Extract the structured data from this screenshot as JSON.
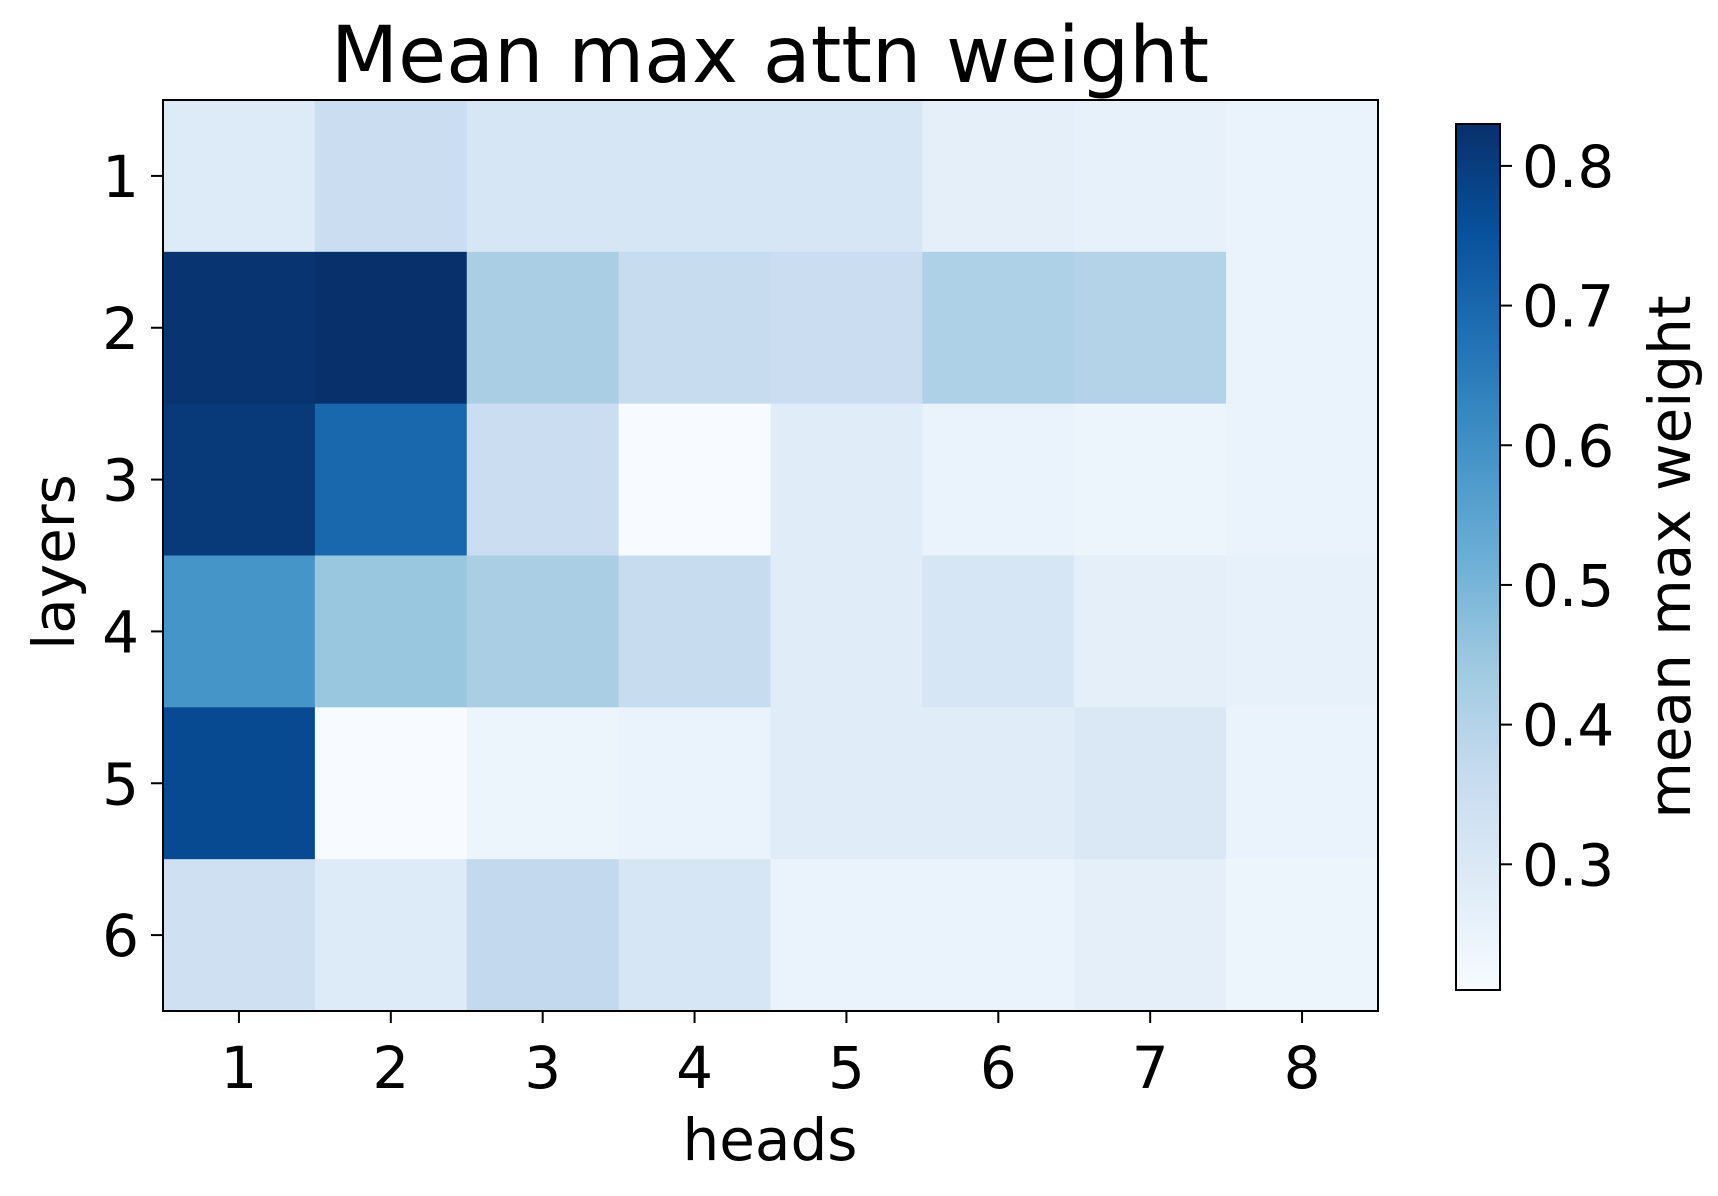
{
  "chart_data": {
    "type": "heatmap",
    "title": "Mean max attn weight",
    "xlabel": "heads",
    "ylabel": "layers",
    "x_categories": [
      "1",
      "2",
      "3",
      "4",
      "5",
      "6",
      "7",
      "8"
    ],
    "y_categories": [
      "1",
      "2",
      "3",
      "4",
      "5",
      "6"
    ],
    "values": [
      [
        0.29,
        0.35,
        0.31,
        0.31,
        0.31,
        0.27,
        0.26,
        0.25
      ],
      [
        0.82,
        0.83,
        0.42,
        0.36,
        0.35,
        0.41,
        0.4,
        0.25
      ],
      [
        0.81,
        0.7,
        0.35,
        0.21,
        0.28,
        0.25,
        0.24,
        0.25
      ],
      [
        0.59,
        0.45,
        0.42,
        0.36,
        0.28,
        0.31,
        0.27,
        0.26
      ],
      [
        0.77,
        0.21,
        0.24,
        0.25,
        0.28,
        0.28,
        0.3,
        0.25
      ],
      [
        0.34,
        0.29,
        0.37,
        0.31,
        0.25,
        0.25,
        0.27,
        0.24
      ]
    ],
    "colorbar": {
      "label": "mean max weight",
      "vmin": 0.21,
      "vmax": 0.83,
      "ticks": [
        "0.3",
        "0.4",
        "0.5",
        "0.6",
        "0.7",
        "0.8"
      ],
      "colormap": "Blues",
      "colormap_stops": [
        "#f7fbff",
        "#deebf7",
        "#c6dbef",
        "#9ecae1",
        "#6baed6",
        "#4292c6",
        "#2171b5",
        "#08519c",
        "#08306b"
      ]
    },
    "grid": false
  }
}
